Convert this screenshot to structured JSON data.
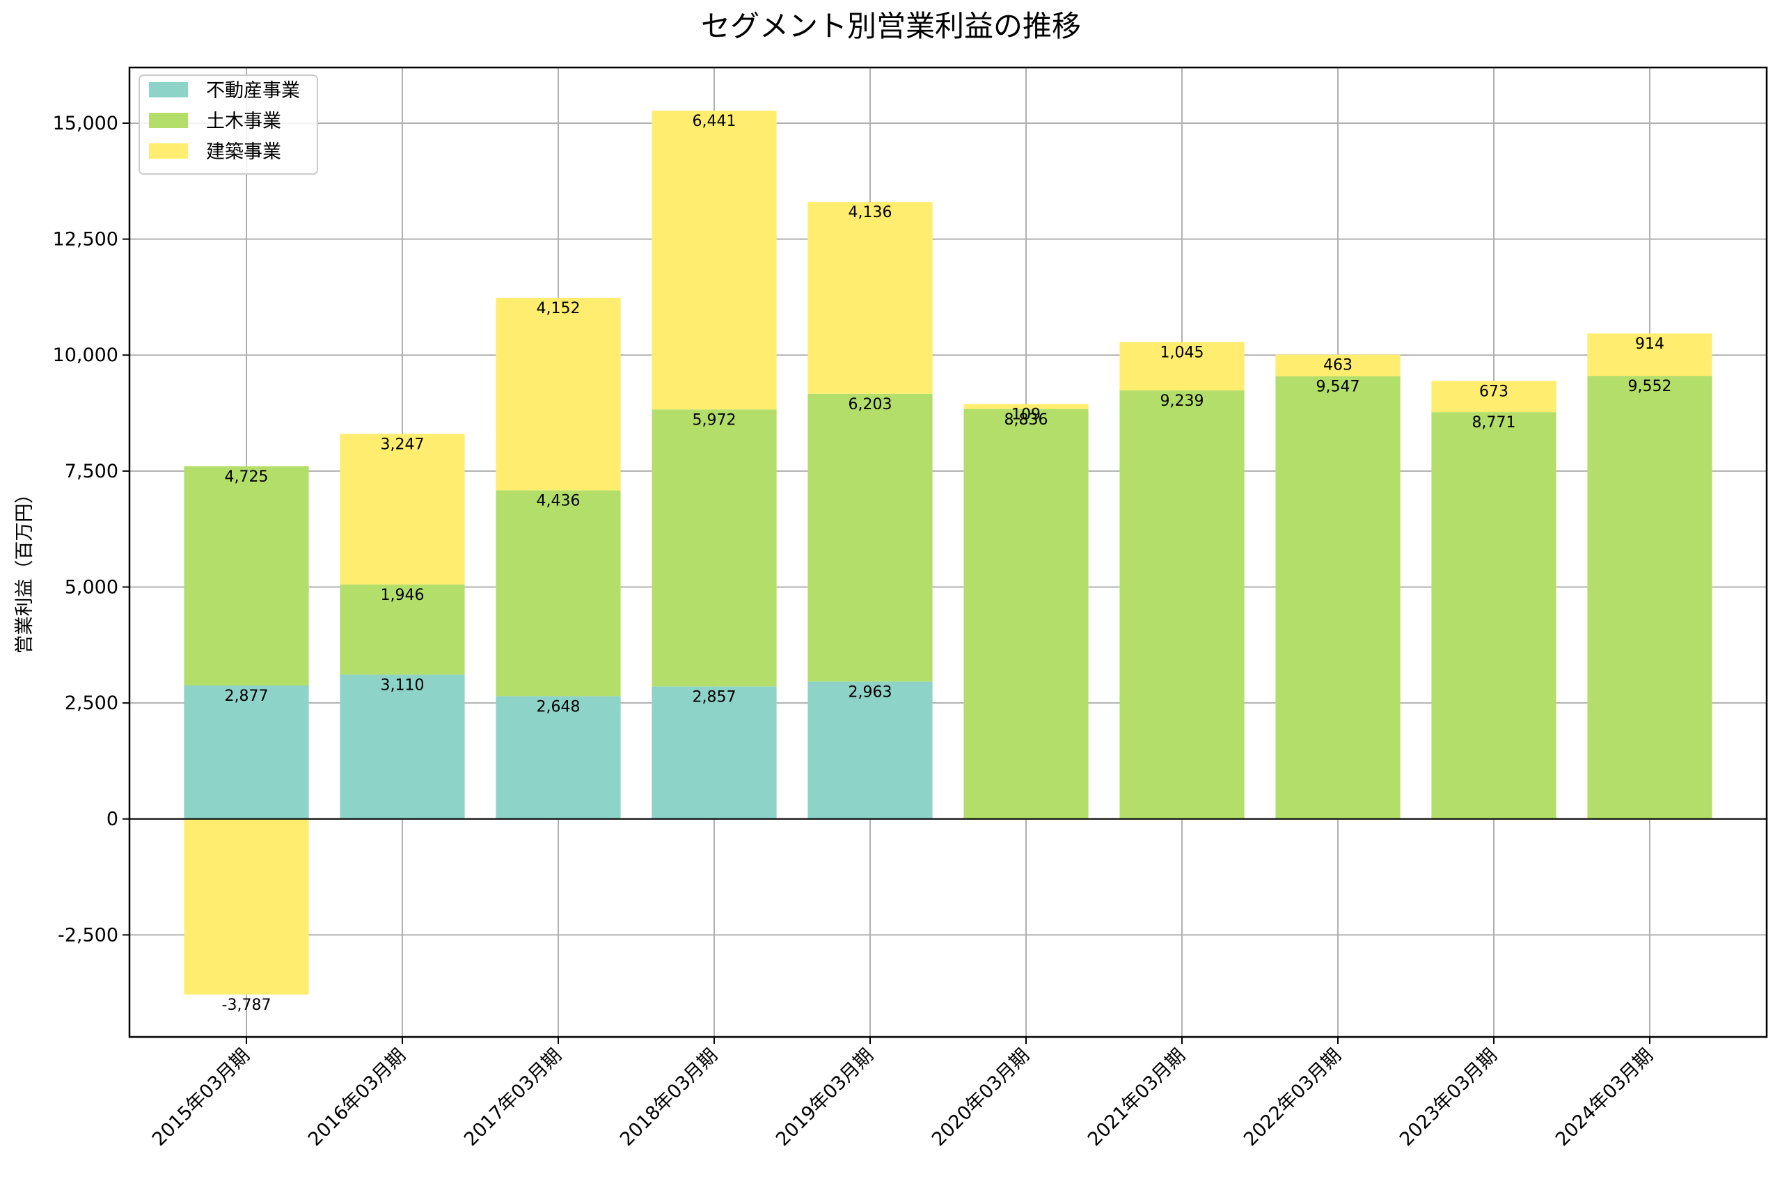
{
  "chart_data": {
    "type": "bar",
    "stacked": true,
    "title": "セグメント別営業利益の推移",
    "xlabel": "",
    "ylabel": "営業利益（百万円）",
    "ylim": [
      -4700,
      16200
    ],
    "yticks": [
      -2500,
      0,
      2500,
      5000,
      7500,
      10000,
      12500,
      15000
    ],
    "ytick_labels": [
      "-2,500",
      "0",
      "2,500",
      "5,000",
      "7,500",
      "10,000",
      "12,500",
      "15,000"
    ],
    "grid": true,
    "legend_position": "top-left",
    "categories": [
      "2015年03月期",
      "2016年03月期",
      "2017年03月期",
      "2018年03月期",
      "2019年03月期",
      "2020年03月期",
      "2021年03月期",
      "2022年03月期",
      "2023年03月期",
      "2024年03月期"
    ],
    "series": [
      {
        "name": "不動産事業",
        "color": "#8dd3c7",
        "values": [
          2877,
          3110,
          2648,
          2857,
          2963,
          null,
          null,
          null,
          null,
          null
        ]
      },
      {
        "name": "土木事業",
        "color": "#b3de69",
        "values": [
          4725,
          1946,
          4436,
          5972,
          6203,
          8836,
          9239,
          9547,
          8771,
          9552
        ]
      },
      {
        "name": "建築事業",
        "color": "#ffed6f",
        "values": [
          -3787,
          3247,
          4152,
          6441,
          4136,
          109,
          1045,
          463,
          673,
          914
        ]
      }
    ]
  }
}
